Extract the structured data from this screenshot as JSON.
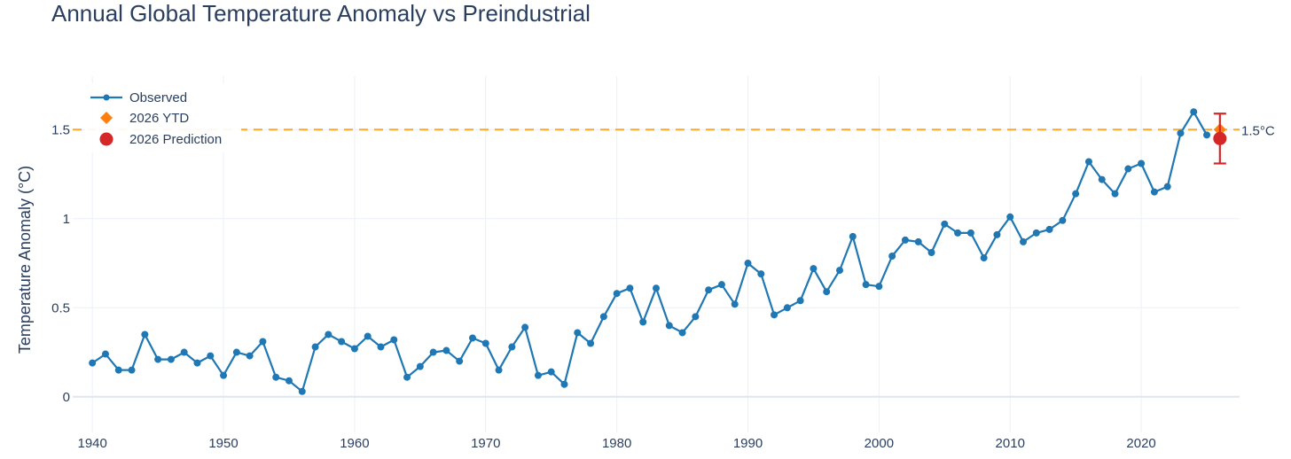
{
  "chart_data": {
    "type": "line",
    "title": "Annual Global Temperature Anomaly vs Preindustrial",
    "xlabel": "",
    "ylabel": "Temperature Anomaly (°C)",
    "xlim": [
      1938.5,
      2027.5
    ],
    "ylim": [
      -0.2,
      1.8
    ],
    "x_ticks": [
      1940,
      1950,
      1960,
      1970,
      1980,
      1990,
      2000,
      2010,
      2020
    ],
    "y_ticks": [
      0,
      0.5,
      1,
      1.5
    ],
    "y_tick_labels": [
      "0",
      "0.5",
      "1",
      "1.5"
    ],
    "grid": true,
    "legend_position": "top-left",
    "series": [
      {
        "name": "Observed",
        "marker": "circle",
        "color": "#1f77b4",
        "x": [
          1940,
          1941,
          1942,
          1943,
          1944,
          1945,
          1946,
          1947,
          1948,
          1949,
          1950,
          1951,
          1952,
          1953,
          1954,
          1955,
          1956,
          1957,
          1958,
          1959,
          1960,
          1961,
          1962,
          1963,
          1964,
          1965,
          1966,
          1967,
          1968,
          1969,
          1970,
          1971,
          1972,
          1973,
          1974,
          1975,
          1976,
          1977,
          1978,
          1979,
          1980,
          1981,
          1982,
          1983,
          1984,
          1985,
          1986,
          1987,
          1988,
          1989,
          1990,
          1991,
          1992,
          1993,
          1994,
          1995,
          1996,
          1997,
          1998,
          1999,
          2000,
          2001,
          2002,
          2003,
          2004,
          2005,
          2006,
          2007,
          2008,
          2009,
          2010,
          2011,
          2012,
          2013,
          2014,
          2015,
          2016,
          2017,
          2018,
          2019,
          2020,
          2021,
          2022,
          2023,
          2024,
          2025
        ],
        "values": [
          0.19,
          0.24,
          0.15,
          0.15,
          0.35,
          0.21,
          0.21,
          0.25,
          0.19,
          0.23,
          0.12,
          0.25,
          0.23,
          0.31,
          0.11,
          0.09,
          0.03,
          0.28,
          0.35,
          0.31,
          0.27,
          0.34,
          0.28,
          0.32,
          0.11,
          0.17,
          0.25,
          0.26,
          0.2,
          0.33,
          0.3,
          0.15,
          0.28,
          0.39,
          0.12,
          0.14,
          0.07,
          0.36,
          0.3,
          0.45,
          0.58,
          0.61,
          0.42,
          0.61,
          0.4,
          0.36,
          0.45,
          0.6,
          0.63,
          0.52,
          0.75,
          0.69,
          0.46,
          0.5,
          0.54,
          0.72,
          0.59,
          0.71,
          0.9,
          0.63,
          0.62,
          0.79,
          0.88,
          0.87,
          0.81,
          0.97,
          0.92,
          0.92,
          0.78,
          0.91,
          1.01,
          0.87,
          0.92,
          0.94,
          0.99,
          1.14,
          1.32,
          1.22,
          1.14,
          1.28,
          1.31,
          1.15,
          1.18,
          1.48,
          1.6,
          1.47
        ]
      },
      {
        "name": "2026 YTD",
        "marker": "diamond",
        "color": "#ff7f0e",
        "x": [
          2026
        ],
        "values": [
          1.5
        ]
      },
      {
        "name": "2026 Prediction",
        "marker": "circle-large",
        "color": "#d62728",
        "x": [
          2026
        ],
        "values": [
          1.45
        ],
        "error_low": [
          1.31
        ],
        "error_high": [
          1.59
        ]
      }
    ],
    "reference_line": {
      "value": 1.5,
      "label": "1.5°C",
      "color": "#ffa726",
      "style": "dashed"
    }
  }
}
